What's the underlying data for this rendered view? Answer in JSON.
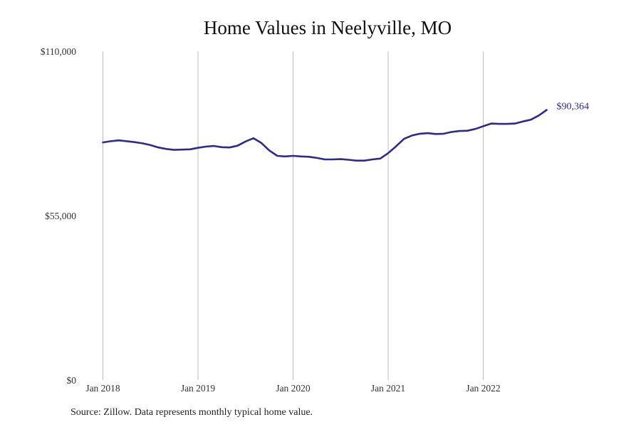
{
  "chart_data": {
    "type": "line",
    "title": "Home Values in Neelyville, MO",
    "source": "Source: Zillow. Data represents monthly typical home value.",
    "xlabel": "",
    "ylabel": "",
    "ylim": [
      0,
      110000
    ],
    "y_ticks": [
      {
        "value": 0,
        "label": "$0"
      },
      {
        "value": 55000,
        "label": "$55,000"
      },
      {
        "value": 110000,
        "label": "$110,000"
      }
    ],
    "x_ticks": [
      "Jan 2018",
      "Jan 2019",
      "Jan 2020",
      "Jan 2021",
      "Jan 2022"
    ],
    "grid": "vertical",
    "line_color": "#2e2a8e",
    "end_label": "$90,364",
    "series": [
      {
        "x": [
          "2018-01",
          "2018-02",
          "2018-03",
          "2018-04",
          "2018-05",
          "2018-06",
          "2018-07",
          "2018-08",
          "2018-09",
          "2018-10",
          "2018-11",
          "2018-12",
          "2019-01",
          "2019-02",
          "2019-03",
          "2019-04",
          "2019-05",
          "2019-06",
          "2019-07",
          "2019-08",
          "2019-09",
          "2019-10",
          "2019-11",
          "2019-12",
          "2020-01",
          "2020-02",
          "2020-03",
          "2020-04",
          "2020-05",
          "2020-06",
          "2020-07",
          "2020-08",
          "2020-09",
          "2020-10",
          "2020-11",
          "2020-12",
          "2021-01",
          "2021-02",
          "2021-03",
          "2021-04",
          "2021-05",
          "2021-06",
          "2021-07",
          "2021-08",
          "2021-09",
          "2021-10",
          "2021-11",
          "2021-12",
          "2022-01",
          "2022-02",
          "2022-03",
          "2022-04",
          "2022-05",
          "2022-06",
          "2022-07",
          "2022-08",
          "2022-09",
          "2022-10",
          "2022-11"
        ],
        "values": [
          79500,
          79900,
          80200,
          79900,
          79600,
          79200,
          78600,
          77800,
          77300,
          77000,
          77100,
          77200,
          77700,
          78100,
          78300,
          77900,
          77800,
          78400,
          79800,
          80900,
          79300,
          76800,
          75000,
          74800,
          75000,
          74800,
          74700,
          74300,
          73800,
          73800,
          73900,
          73700,
          73400,
          73400,
          73800,
          74100,
          75900,
          78200,
          80700,
          81800,
          82400,
          82600,
          82300,
          82400,
          83000,
          83300,
          83400,
          84000,
          84900,
          85800,
          85700,
          85700,
          85800,
          86500,
          87100,
          88500,
          90364,
          null,
          null
        ]
      }
    ]
  }
}
